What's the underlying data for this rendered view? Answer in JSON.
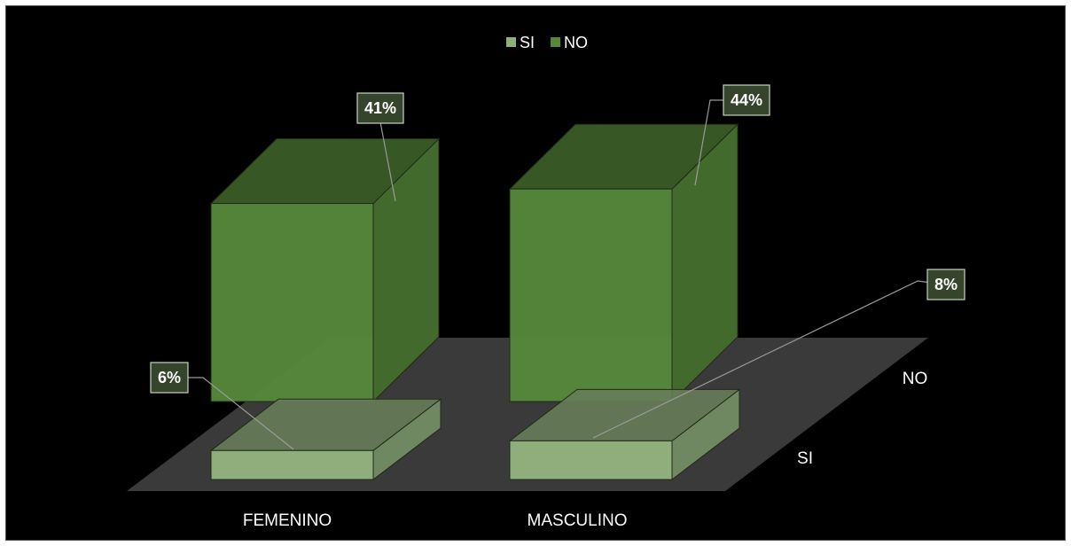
{
  "chart_data": {
    "type": "bar",
    "subtype": "3d-column-series-in-depth",
    "categories": [
      "FEMENINO",
      "MASCULINO"
    ],
    "series": [
      {
        "name": "SI",
        "values": [
          6,
          8
        ],
        "labels": [
          "6%",
          "8%"
        ]
      },
      {
        "name": "NO",
        "values": [
          41,
          44
        ],
        "labels": [
          "41%",
          "44%"
        ]
      }
    ],
    "unit": "%",
    "title": "",
    "xlabel": "",
    "ylabel": "",
    "legend": {
      "position": "top",
      "entries": [
        "SI",
        "NO"
      ]
    },
    "grid": false,
    "colors": {
      "background": "#000000",
      "floor": "#3a3a3a",
      "si": "#8fae7c",
      "no": "#56883a",
      "label_box": "#35452b"
    }
  }
}
